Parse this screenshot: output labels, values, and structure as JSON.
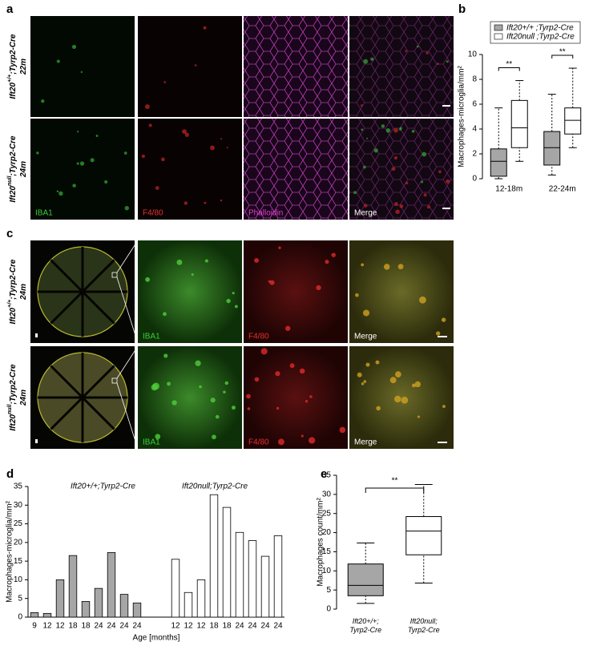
{
  "panel_labels": [
    "a",
    "b",
    "c",
    "d",
    "e"
  ],
  "panel_a": {
    "rows": [
      {
        "genotype": {
          "gene": "Ift20",
          "allele": "+/+",
          "rest": ";Tyrp2-Cre"
        },
        "age": "22m"
      },
      {
        "genotype": {
          "gene": "Ift20",
          "allele": "null",
          "rest": ";Tyrp2-Cre"
        },
        "age": "24m"
      }
    ],
    "channels": [
      "IBA1",
      "F4/80",
      "Phalloidin",
      "Merge"
    ]
  },
  "panel_c": {
    "rows": [
      {
        "genotype": {
          "gene": "Ift20",
          "allele": "+/+",
          "rest": ";Tyrp2-Cre"
        },
        "age": "24m"
      },
      {
        "genotype": {
          "gene": "Ift20",
          "allele": "null",
          "rest": ";Tyrp2-Cre"
        },
        "age": "24m"
      }
    ],
    "channels": [
      "IBA1",
      "F4/80",
      "Merge"
    ]
  },
  "chart_data": [
    {
      "type": "box",
      "y_label": "Macrophages-microglia/mm²",
      "categories": [
        "12-18m",
        "22-24m"
      ],
      "ylim": [
        0,
        10
      ],
      "yticks": [
        0,
        2,
        4,
        6,
        8,
        10
      ],
      "legend": "top",
      "series": [
        {
          "name": "Ift20+/+ ;Tyrp2-Cre",
          "color": "#a6a6a6",
          "stats": [
            {
              "min": 0,
              "q1": 0.2,
              "median": 1.4,
              "q3": 2.4,
              "max": 5.7
            },
            {
              "min": 0.3,
              "q1": 1.1,
              "median": 2.5,
              "q3": 3.8,
              "max": 6.8
            }
          ]
        },
        {
          "name": "Ift20null ;Tyrp2-Cre",
          "color": "#ffffff",
          "stats": [
            {
              "min": 1.4,
              "q1": 2.5,
              "median": 4.1,
              "q3": 6.3,
              "max": 7.9
            },
            {
              "min": 2.5,
              "q1": 3.6,
              "median": 4.7,
              "q3": 5.7,
              "max": 8.9
            }
          ]
        }
      ],
      "annotations": [
        "**",
        "**"
      ]
    },
    {
      "type": "bar",
      "y_label": "Macrophages-microglia/mm²",
      "x_label": "Age [months]",
      "categories": [
        "9",
        "12",
        "12",
        "18",
        "18",
        "24",
        "24",
        "24",
        "24",
        null,
        null,
        "12",
        "12",
        "12",
        "18",
        "18",
        "24",
        "24",
        "24",
        "24"
      ],
      "ylim": [
        0,
        35
      ],
      "yticks": [
        0,
        5,
        10,
        15,
        20,
        25,
        30,
        35
      ],
      "series": [
        {
          "name": "Ift20+/+;Tyrp2-Cre",
          "color": "#a6a6a6",
          "values": [
            1.2,
            1.0,
            10,
            16.5,
            4.2,
            7.7,
            17.3,
            6.1,
            3.8,
            null,
            null,
            null,
            null,
            null,
            null,
            null,
            null,
            null,
            null,
            null
          ]
        },
        {
          "name": "Ift20null;Tyrp2-Cre",
          "color": "#ffffff",
          "values": [
            null,
            null,
            null,
            null,
            null,
            null,
            null,
            null,
            null,
            null,
            null,
            15.5,
            6.6,
            10,
            32.8,
            29.4,
            22.7,
            20.5,
            16.3,
            21.8
          ]
        }
      ]
    },
    {
      "type": "box",
      "y_label": "Macrophages count/mm²",
      "categories": [
        "Ift20+/+;\nTyrp2-Cre",
        "Ift20null;\nTyrp2-Cre"
      ],
      "ylim": [
        0,
        35
      ],
      "yticks": [
        0,
        5,
        10,
        15,
        20,
        25,
        30,
        35
      ],
      "series": [
        {
          "color": "#a6a6a6",
          "stats": [
            {
              "min": 1.5,
              "q1": 3.5,
              "median": 6.2,
              "q3": 11.8,
              "max": 17.3
            },
            null
          ]
        },
        {
          "color": "#ffffff",
          "stats": [
            null,
            {
              "min": 6.8,
              "q1": 14.2,
              "median": 20.4,
              "q3": 24.2,
              "max": 32.6
            }
          ]
        }
      ],
      "annotations": [
        "**"
      ]
    }
  ]
}
